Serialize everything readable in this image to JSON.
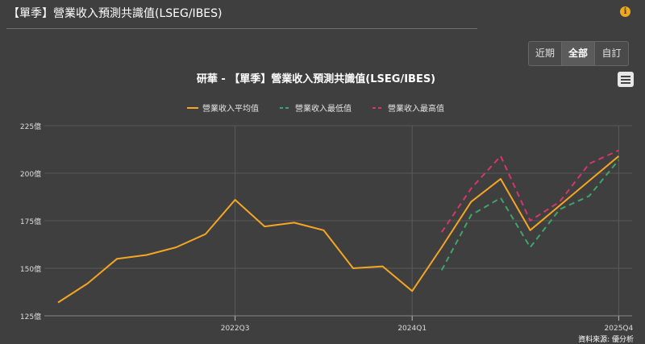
{
  "header": {
    "title": "【單季】營業收入預測共識值(LSEG/IBES)",
    "info_icon": "info-icon"
  },
  "range_selector": {
    "options": [
      "近期",
      "全部",
      "自訂"
    ],
    "selected": "全部"
  },
  "menu": {
    "icon": "hamburger-menu-icon"
  },
  "footer": {
    "source": "資料來源: 優分析"
  },
  "colors": {
    "background": "#3f3f3f",
    "grid": "#5a5a5a",
    "avg": "#f5a623",
    "low": "#3fa56b",
    "high": "#d8356a"
  },
  "chart_data": {
    "type": "line",
    "title": "研華 - 【單季】營業收入預測共識值(LSEG/IBES)",
    "x_tick_labels": [
      "2022Q3",
      "2024Q1",
      "2025Q4"
    ],
    "x": [
      "2021Q1",
      "2021Q2",
      "2021Q3",
      "2021Q4",
      "2022Q1",
      "2022Q2",
      "2022Q3",
      "2022Q4",
      "2023Q1",
      "2023Q2",
      "2023Q3",
      "2023Q4",
      "2024Q1",
      "2024Q2",
      "2024Q3",
      "2024Q4",
      "2025Q1",
      "2025Q2",
      "2025Q3",
      "2025Q4"
    ],
    "y_ticks": [
      125,
      150,
      175,
      200,
      225
    ],
    "y_tick_suffix": "億",
    "ylim": [
      125,
      225
    ],
    "grid": true,
    "legend_position": "top-center",
    "series": [
      {
        "name": "營業收入平均值",
        "color": "#f5a623",
        "dash": "solid",
        "values": [
          132,
          142,
          155,
          157,
          161,
          168,
          186,
          172,
          174,
          170,
          150,
          151,
          138,
          161,
          185,
          197,
          170,
          183,
          196,
          209
        ]
      },
      {
        "name": "營業收入最低值",
        "color": "#3fa56b",
        "dash": "dash",
        "values": [
          null,
          null,
          null,
          null,
          null,
          null,
          null,
          null,
          null,
          null,
          null,
          null,
          null,
          149,
          178,
          187,
          161,
          181,
          188,
          207
        ]
      },
      {
        "name": "營業收入最高值",
        "color": "#d8356a",
        "dash": "dash",
        "values": [
          null,
          null,
          null,
          null,
          null,
          null,
          null,
          null,
          null,
          null,
          null,
          null,
          null,
          169,
          192,
          209,
          175,
          185,
          205,
          212
        ]
      }
    ]
  }
}
